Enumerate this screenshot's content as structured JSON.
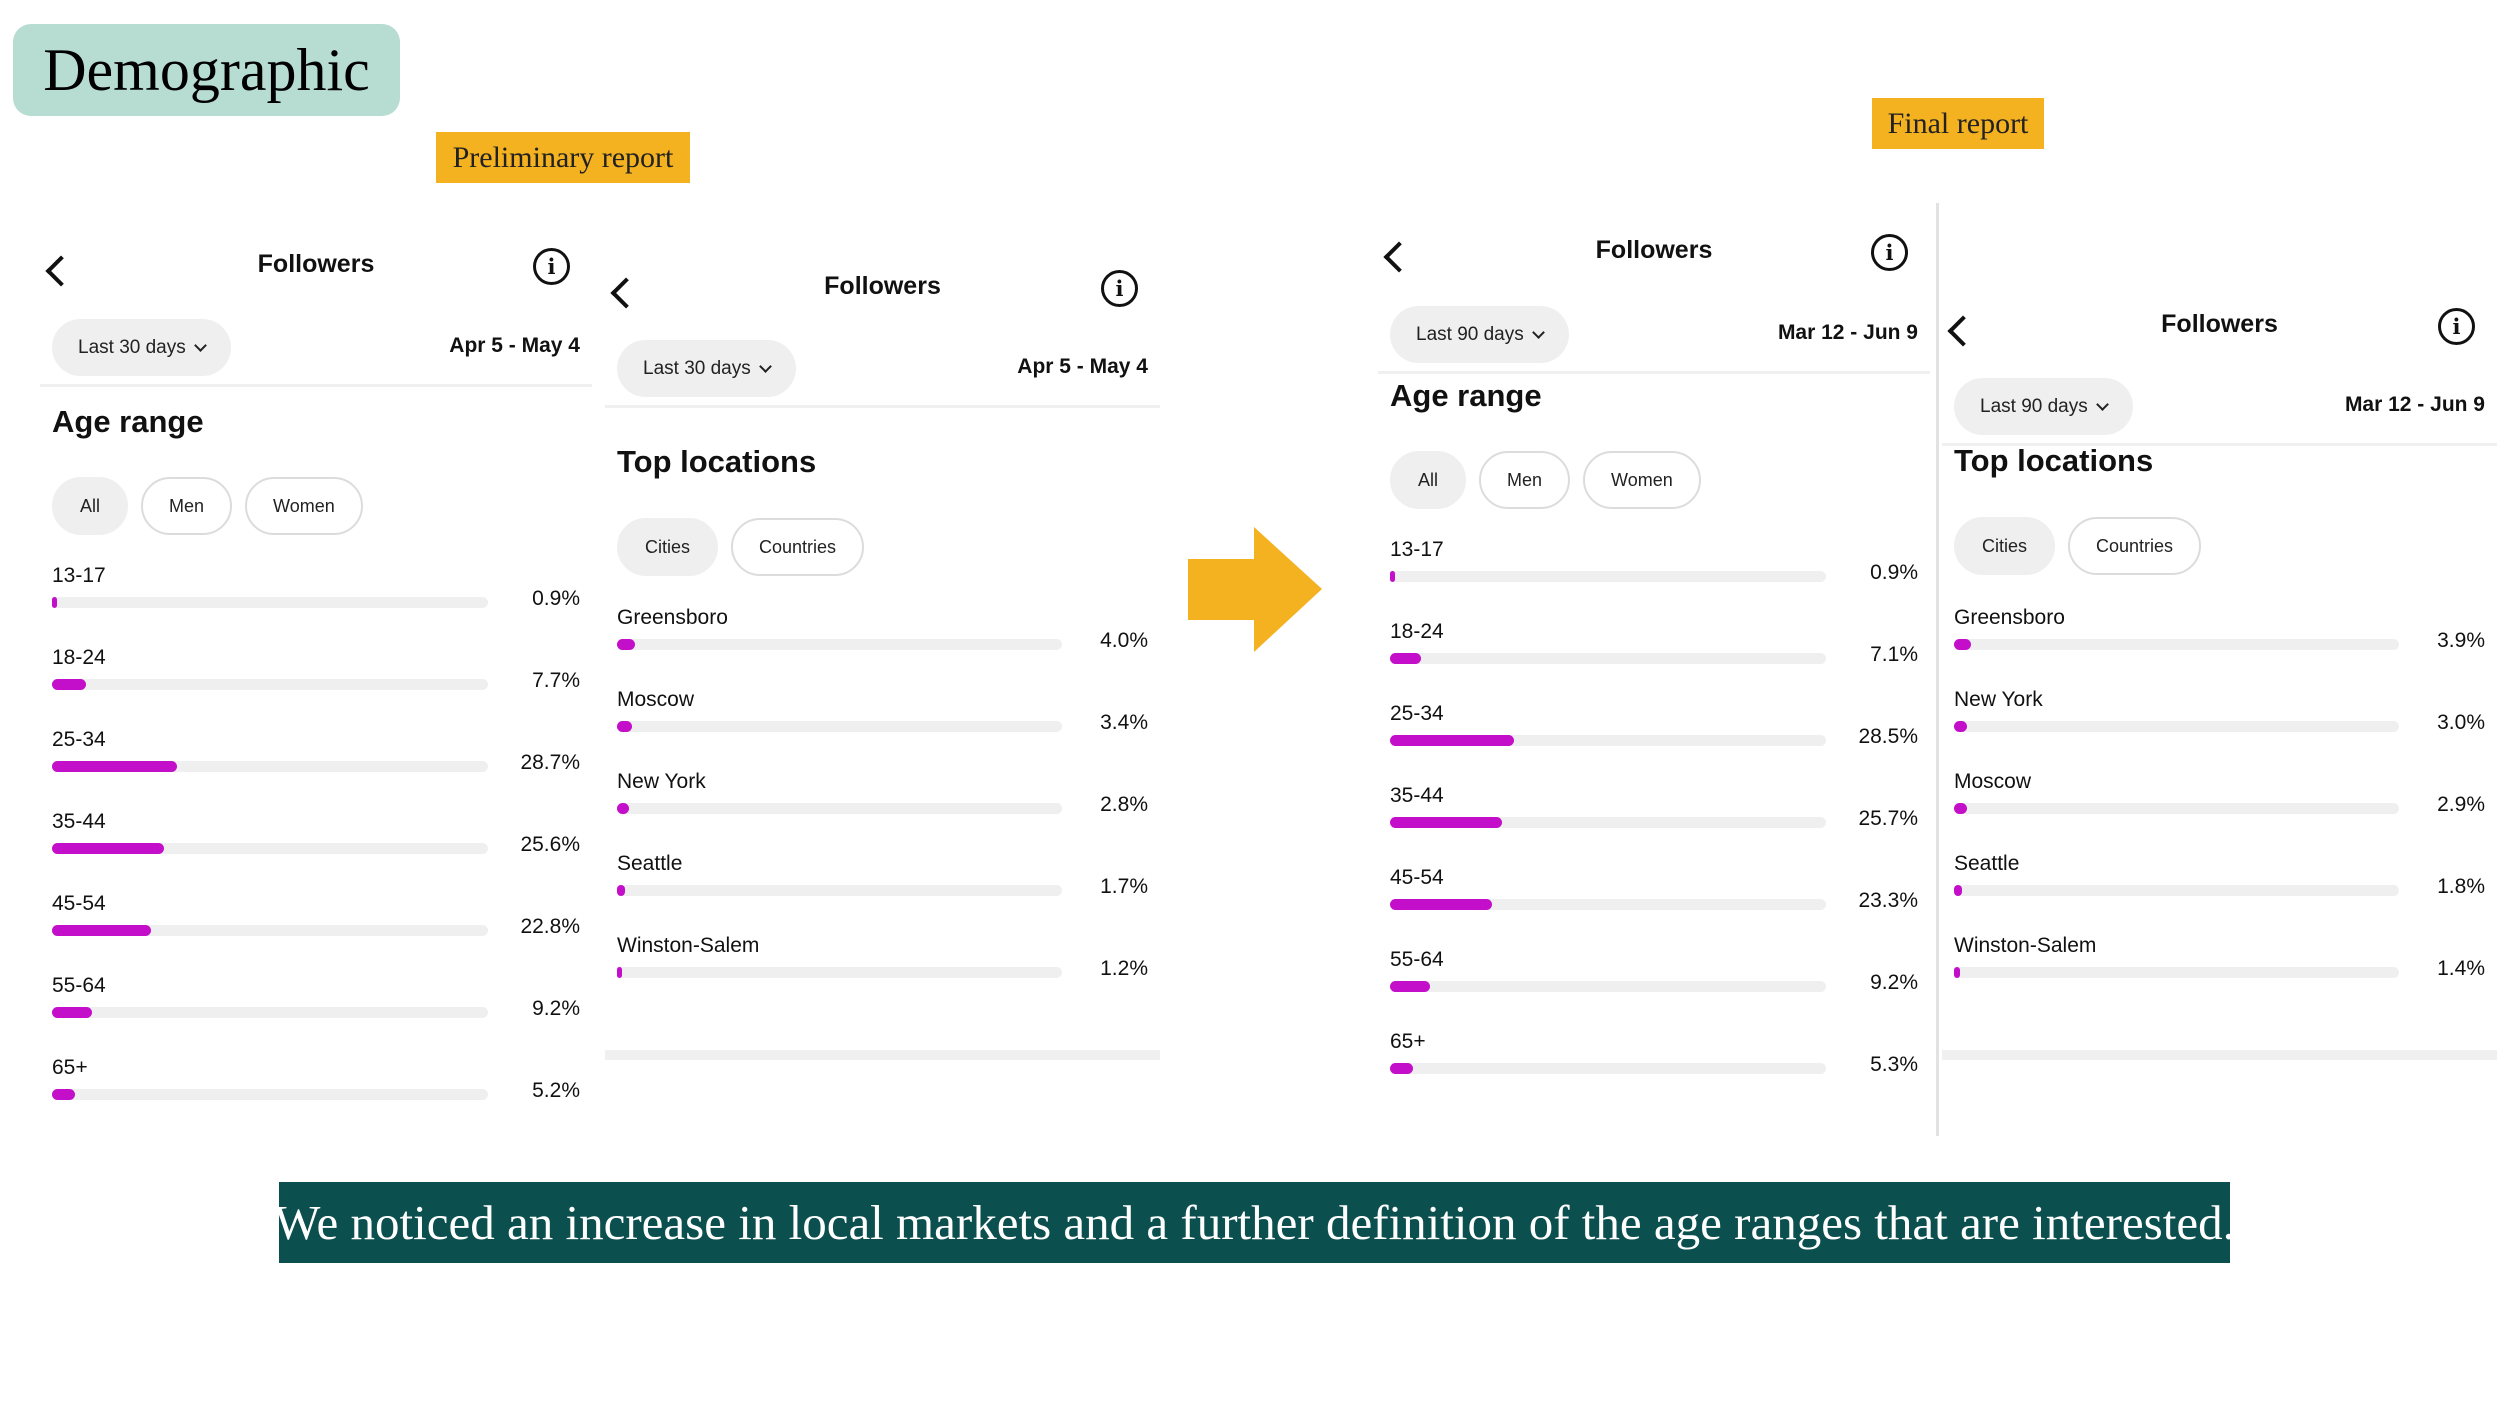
{
  "slide": {
    "title": "Demographic",
    "preliminary_label": "Preliminary report",
    "final_label": "Final report",
    "caption": "We noticed an increase in local markets and a further definition of the age ranges that are interested.",
    "colors": {
      "title_bg": "#b7dcd1",
      "tag_bg": "#f4b120",
      "arrow": "#f4b120",
      "caption_bg": "#0b4f4f",
      "bar_fill": "#c40fca",
      "bar_track": "#efefef"
    },
    "icons": {
      "arrow": "right-arrow-icon",
      "back": "chevron-left-icon",
      "info": "info-icon",
      "dropdown": "chevron-down-icon"
    }
  },
  "panels": [
    {
      "id": "prelim-age",
      "header_title": "Followers",
      "info_glyph": "i",
      "range_label": "Last 30 days",
      "dates": "Apr 5 - May 4",
      "section_title": "Age range",
      "tabs": [
        {
          "label": "All",
          "active": true
        },
        {
          "label": "Men",
          "active": false
        },
        {
          "label": "Women",
          "active": false
        }
      ],
      "rows": [
        {
          "label": "13-17",
          "pct": "0.9%",
          "value": 0.9
        },
        {
          "label": "18-24",
          "pct": "7.7%",
          "value": 7.7
        },
        {
          "label": "25-34",
          "pct": "28.7%",
          "value": 28.7
        },
        {
          "label": "35-44",
          "pct": "25.6%",
          "value": 25.6
        },
        {
          "label": "45-54",
          "pct": "22.8%",
          "value": 22.8
        },
        {
          "label": "55-64",
          "pct": "9.2%",
          "value": 9.2
        },
        {
          "label": "65+",
          "pct": "5.2%",
          "value": 5.2
        }
      ]
    },
    {
      "id": "prelim-loc",
      "header_title": "Followers",
      "info_glyph": "i",
      "range_label": "Last 30 days",
      "dates": "Apr 5 - May 4",
      "section_title": "Top locations",
      "tabs": [
        {
          "label": "Cities",
          "active": true
        },
        {
          "label": "Countries",
          "active": false
        }
      ],
      "rows": [
        {
          "label": "Greensboro",
          "pct": "4.0%",
          "value": 4.0
        },
        {
          "label": "Moscow",
          "pct": "3.4%",
          "value": 3.4
        },
        {
          "label": "New York",
          "pct": "2.8%",
          "value": 2.8
        },
        {
          "label": "Seattle",
          "pct": "1.7%",
          "value": 1.7
        },
        {
          "label": "Winston-Salem",
          "pct": "1.2%",
          "value": 1.2
        }
      ]
    },
    {
      "id": "final-age",
      "header_title": "Followers",
      "info_glyph": "i",
      "range_label": "Last 90 days",
      "dates": "Mar 12 - Jun 9",
      "section_title": "Age range",
      "tabs": [
        {
          "label": "All",
          "active": true
        },
        {
          "label": "Men",
          "active": false
        },
        {
          "label": "Women",
          "active": false
        }
      ],
      "rows": [
        {
          "label": "13-17",
          "pct": "0.9%",
          "value": 0.9
        },
        {
          "label": "18-24",
          "pct": "7.1%",
          "value": 7.1
        },
        {
          "label": "25-34",
          "pct": "28.5%",
          "value": 28.5
        },
        {
          "label": "35-44",
          "pct": "25.7%",
          "value": 25.7
        },
        {
          "label": "45-54",
          "pct": "23.3%",
          "value": 23.3
        },
        {
          "label": "55-64",
          "pct": "9.2%",
          "value": 9.2
        },
        {
          "label": "65+",
          "pct": "5.3%",
          "value": 5.3
        }
      ]
    },
    {
      "id": "final-loc",
      "header_title": "Followers",
      "info_glyph": "i",
      "range_label": "Last 90 days",
      "dates": "Mar 12 - Jun 9",
      "section_title": "Top locations",
      "tabs": [
        {
          "label": "Cities",
          "active": true
        },
        {
          "label": "Countries",
          "active": false
        }
      ],
      "rows": [
        {
          "label": "Greensboro",
          "pct": "3.9%",
          "value": 3.9
        },
        {
          "label": "New York",
          "pct": "3.0%",
          "value": 3.0
        },
        {
          "label": "Moscow",
          "pct": "2.9%",
          "value": 2.9
        },
        {
          "label": "Seattle",
          "pct": "1.8%",
          "value": 1.8
        },
        {
          "label": "Winston-Salem",
          "pct": "1.4%",
          "value": 1.4
        }
      ]
    }
  ]
}
